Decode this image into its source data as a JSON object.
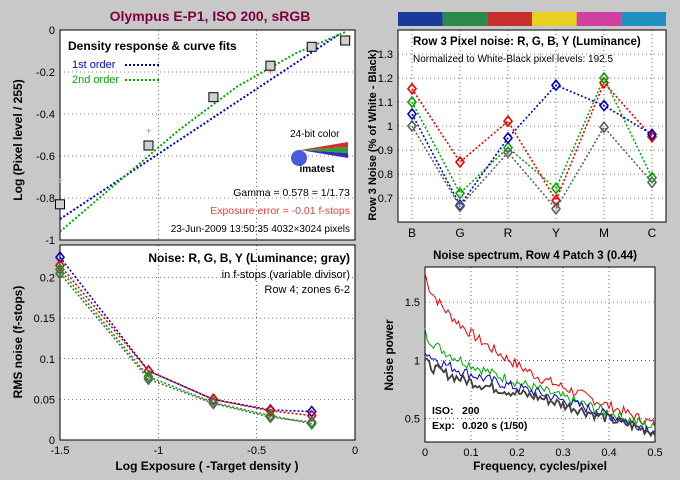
{
  "colors": {
    "background": "#c8c8c8",
    "title": "#800040",
    "red": "#ee0000",
    "green": "#00aa00",
    "blue": "#0000cc",
    "gray": "#606060",
    "exposure_error": "#e04040"
  },
  "main_title": "Olympus E-P1, ISO 200, sRGB",
  "patch_strip": [
    "#1a3a9a",
    "#2a8a4a",
    "#c83030",
    "#e8d020",
    "#d040a0",
    "#2090c0"
  ],
  "chart_data": [
    {
      "id": "density",
      "type": "scatter",
      "title": "Density response & curve fits",
      "ylabel": "Log (Pixel level / 255)",
      "xlim": [
        -1.5,
        0
      ],
      "ylim": [
        -1,
        0
      ],
      "yticks": [
        "0",
        "-0.2",
        "-0.4",
        "-0.6",
        "-0.8",
        "-1"
      ],
      "legend": [
        {
          "name": "1st order",
          "color": "#0000cc"
        },
        {
          "name": "2nd order",
          "color": "#00aa00"
        }
      ],
      "measured": {
        "x": [
          -1.5,
          -1.05,
          -0.72,
          -0.43,
          -0.22,
          -0.05
        ],
        "y": [
          -0.83,
          -0.55,
          -0.32,
          -0.17,
          -0.08,
          -0.05
        ]
      },
      "pink_points": {
        "x": [
          -1.5,
          -1.05,
          -0.43
        ],
        "y": [
          -0.72,
          -0.48,
          -0.2
        ]
      },
      "fit_1st": {
        "x": [
          -1.5,
          -0.08
        ],
        "y": [
          -0.9,
          -0.02
        ]
      },
      "fit_2nd": {
        "x": [
          -1.5,
          -1.2,
          -0.9,
          -0.6,
          -0.3,
          -0.05
        ],
        "y": [
          -0.96,
          -0.72,
          -0.48,
          -0.27,
          -0.11,
          -0.01
        ]
      },
      "logo_caption": "24-bit color",
      "logo_name": "imatest",
      "gamma_text": "Gamma = 0.578 = 1/1.73",
      "exposure_error": "Exposure error = -0.01 f-stops",
      "footer": "23-Jun-2009 13:50:35   4032×3024 pixels"
    },
    {
      "id": "row-noise",
      "type": "line",
      "title": "Row 3 Pixel noise: R, G, B, Y (Luminance)",
      "subtitle": "Normalized to White-Black pixel levels: 192.5",
      "ylabel": "Row 3 Noise (% of White - Black)",
      "categories": [
        "B",
        "G",
        "R",
        "Y",
        "M",
        "C"
      ],
      "ylim": [
        0.6,
        1.4
      ],
      "yticks": [
        "1.3",
        "1.2",
        "1.1",
        "1",
        "0.9",
        "0.8",
        "0.7"
      ],
      "series": [
        {
          "color": "#ee0000",
          "values": [
            1.155,
            0.85,
            1.02,
            0.69,
            1.18,
            0.955
          ]
        },
        {
          "color": "#00aa00",
          "values": [
            1.1,
            0.72,
            0.91,
            0.74,
            1.2,
            0.785
          ]
        },
        {
          "color": "#0000cc",
          "values": [
            1.05,
            0.67,
            0.95,
            1.17,
            1.085,
            0.965
          ]
        },
        {
          "color": "#606060",
          "values": [
            1.0,
            0.665,
            0.89,
            0.655,
            0.995,
            0.765
          ]
        }
      ]
    },
    {
      "id": "noise-fstops",
      "type": "line",
      "title": "Noise: R, G, B, Y (Luminance; gray)",
      "note1": "in f-stops (variable divisor)",
      "note2": "Row 4; zones 6-2",
      "ylabel": "RMS noise (f-stops)",
      "xlabel": "Log Exposure ( -Target density )",
      "xlim": [
        -1.5,
        0
      ],
      "ylim": [
        0,
        0.24
      ],
      "xticks": [
        "-1.5",
        "-1",
        "-0.5",
        "0"
      ],
      "yticks": [
        "0.2",
        "0.15",
        "0.1",
        "0.05",
        "0"
      ],
      "x": [
        -1.5,
        -1.05,
        -0.72,
        -0.43,
        -0.22
      ],
      "series": [
        {
          "color": "#0000cc",
          "values": [
            0.225,
            0.085,
            0.05,
            0.037,
            0.035
          ]
        },
        {
          "color": "#ee0000",
          "values": [
            0.215,
            0.085,
            0.05,
            0.036,
            0.03
          ]
        },
        {
          "color": "#00aa00",
          "values": [
            0.21,
            0.078,
            0.046,
            0.03,
            0.02
          ]
        },
        {
          "color": "#606060",
          "values": [
            0.205,
            0.075,
            0.045,
            0.028,
            0.022
          ]
        }
      ]
    },
    {
      "id": "noise-spectrum",
      "type": "line",
      "title": "Noise spectrum, Row 4 Patch 3 (0.44)",
      "ylabel": "Noise power",
      "xlabel": "Frequency, cycles/pixel",
      "xlim": [
        0,
        0.5
      ],
      "ylim": [
        0.3,
        1.8
      ],
      "xticks": [
        "0",
        "0.1",
        "0.2",
        "0.3",
        "0.4",
        "0.5"
      ],
      "yticks": [
        "1.5",
        "1",
        "0.5"
      ],
      "iso_label": "ISO:",
      "iso_value": "200",
      "exp_label": "Exp:",
      "exp_value": "0.020 s  (1/50)",
      "series": [
        {
          "color": "#ee0000",
          "start": 1.75,
          "mid": 0.85,
          "end": 0.45
        },
        {
          "color": "#00aa00",
          "start": 1.25,
          "mid": 0.75,
          "end": 0.42
        },
        {
          "color": "#0000cc",
          "start": 1.1,
          "mid": 0.72,
          "end": 0.4
        },
        {
          "color": "#404040",
          "start": 1.0,
          "mid": 0.68,
          "end": 0.38
        }
      ]
    }
  ]
}
